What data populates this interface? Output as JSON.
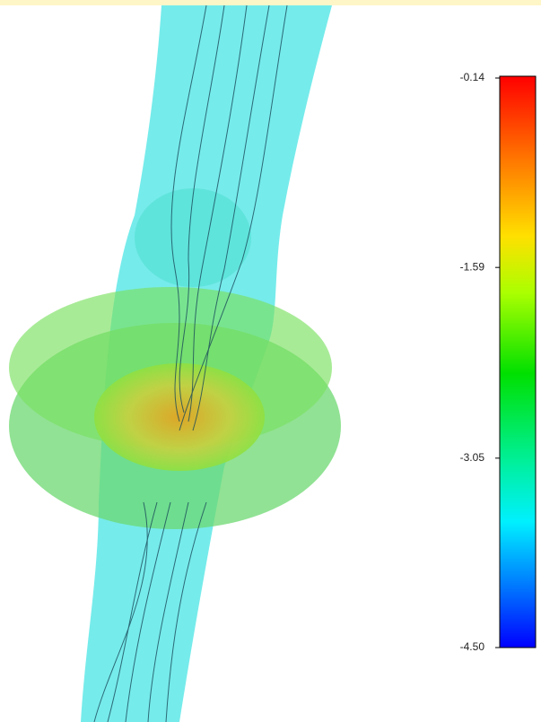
{
  "colorbar": {
    "lim": [
      -4.5,
      -0.14
    ],
    "ticks": [
      -0.14,
      -1.59,
      -3.05,
      {
        "value": -4.5,
        "label": "-4.50"
      }
    ]
  }
}
